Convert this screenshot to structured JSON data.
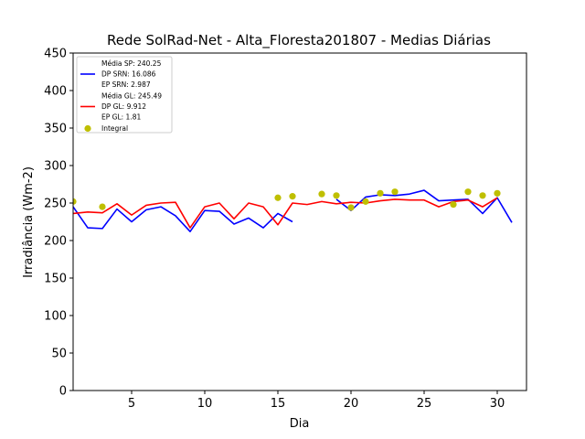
{
  "chart_data": {
    "type": "line",
    "title": "Rede SolRad-Net - Alta_Floresta201807 - Medias Diárias",
    "xlabel": "Dia",
    "ylabel": "Irradiância (Wm-2)",
    "xlim": [
      1,
      32
    ],
    "ylim": [
      0,
      450
    ],
    "xticks": [
      5,
      10,
      15,
      20,
      25,
      30
    ],
    "yticks": [
      0,
      50,
      100,
      150,
      200,
      250,
      300,
      350,
      400,
      450
    ],
    "grid": false,
    "legend_position": "top-left",
    "legend": [
      {
        "lines": [
          "Média SP: 240.25",
          "DP SRN: 16.086",
          "EP SRN: 2.987"
        ],
        "color": "#0000ff",
        "marker": "line"
      },
      {
        "lines": [
          "Média GL: 245.49",
          "DP GL: 9.912",
          "EP GL: 1.81"
        ],
        "color": "#ff0000",
        "marker": "line"
      },
      {
        "lines": [
          "Integral"
        ],
        "color": "#bfbf00",
        "marker": "dot"
      }
    ],
    "series": [
      {
        "key": "sp",
        "style": "line",
        "color": "#0000ff",
        "segments": [
          {
            "x": [
              1,
              2,
              3,
              4,
              5,
              6,
              7,
              8,
              9,
              10,
              11,
              12,
              13,
              14,
              15,
              16
            ],
            "y": [
              245,
              217,
              216,
              242,
              225,
              241,
              245,
              233,
              212,
              240,
              239,
              222,
              230,
              217,
              236,
              225
            ]
          },
          {
            "x": [
              19,
              20,
              21,
              22,
              23,
              24,
              25,
              26,
              27,
              28,
              29,
              30,
              31
            ],
            "y": [
              255,
              240,
              258,
              261,
              260,
              262,
              267,
              253,
              254,
              255,
              236,
              257,
              224
            ]
          }
        ]
      },
      {
        "key": "gl",
        "style": "line",
        "color": "#ff0000",
        "segments": [
          {
            "x": [
              1,
              2,
              3,
              4,
              5,
              6,
              7,
              8,
              9,
              10,
              11,
              12,
              13,
              14,
              15,
              16,
              17,
              18,
              19,
              20,
              21,
              22,
              23,
              24,
              25,
              26,
              27,
              28,
              29,
              30
            ],
            "y": [
              236,
              238,
              237,
              249,
              234,
              247,
              250,
              251,
              217,
              245,
              250,
              229,
              250,
              245,
              221,
              250,
              248,
              252,
              249,
              251,
              250,
              253,
              255,
              254,
              254,
              245,
              252,
              254,
              245,
              257
            ]
          }
        ]
      },
      {
        "key": "integral",
        "style": "scatter",
        "color": "#bfbf00",
        "x": [
          1,
          3,
          15,
          16,
          18,
          19,
          20,
          21,
          22,
          23,
          27,
          28,
          29,
          30
        ],
        "y": [
          252,
          245,
          257,
          259,
          262,
          260,
          244,
          252,
          263,
          265,
          248,
          265,
          260,
          263
        ]
      }
    ]
  }
}
